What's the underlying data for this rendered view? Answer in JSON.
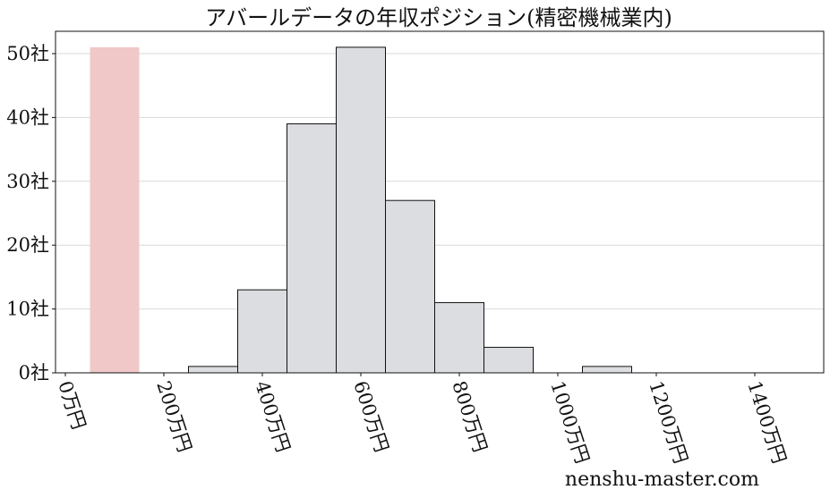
{
  "chart_data": {
    "type": "bar",
    "title": "アバールデータの年収ポジション(精密機械業内)",
    "xlabel": "",
    "ylabel": "",
    "xlim": [
      -20,
      1540
    ],
    "ylim": [
      0,
      53.5
    ],
    "bin_width": 100,
    "bins": [
      {
        "start": 50,
        "value": 51,
        "highlight": true
      },
      {
        "start": 250,
        "value": 1
      },
      {
        "start": 350,
        "value": 13
      },
      {
        "start": 450,
        "value": 39
      },
      {
        "start": 550,
        "value": 51
      },
      {
        "start": 650,
        "value": 27
      },
      {
        "start": 750,
        "value": 11
      },
      {
        "start": 850,
        "value": 4
      },
      {
        "start": 1050,
        "value": 1
      }
    ],
    "x_ticks": [
      {
        "value": 0,
        "label": "0万円"
      },
      {
        "value": 200,
        "label": "200万円"
      },
      {
        "value": 400,
        "label": "400万円"
      },
      {
        "value": 600,
        "label": "600万円"
      },
      {
        "value": 800,
        "label": "800万円"
      },
      {
        "value": 1000,
        "label": "1000万円"
      },
      {
        "value": 1200,
        "label": "1200万円"
      },
      {
        "value": 1400,
        "label": "1400万円"
      }
    ],
    "y_ticks": [
      {
        "value": 0,
        "label": "0社"
      },
      {
        "value": 10,
        "label": "10社"
      },
      {
        "value": 20,
        "label": "20社"
      },
      {
        "value": 30,
        "label": "30社"
      },
      {
        "value": 40,
        "label": "40社"
      },
      {
        "value": 50,
        "label": "50社"
      }
    ],
    "grid": "horizontal",
    "colors": {
      "bar_fill": "#dcdde0",
      "bar_edge": "#111111",
      "highlight_fill": "#f0c8c8",
      "grid": "#d9d9d9"
    }
  },
  "watermark": "nenshu-master.com"
}
